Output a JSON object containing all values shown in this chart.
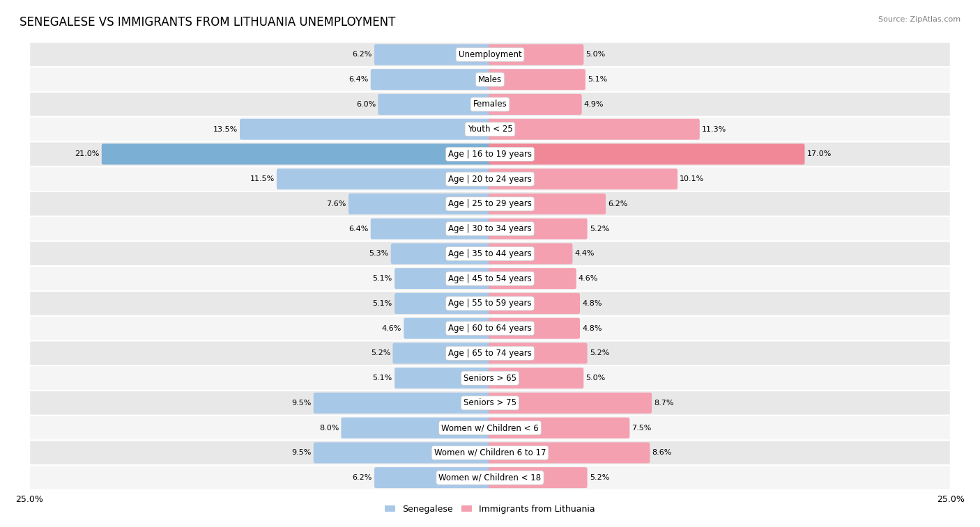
{
  "title": "SENEGALESE VS IMMIGRANTS FROM LITHUANIA UNEMPLOYMENT",
  "source": "Source: ZipAtlas.com",
  "categories": [
    "Unemployment",
    "Males",
    "Females",
    "Youth < 25",
    "Age | 16 to 19 years",
    "Age | 20 to 24 years",
    "Age | 25 to 29 years",
    "Age | 30 to 34 years",
    "Age | 35 to 44 years",
    "Age | 45 to 54 years",
    "Age | 55 to 59 years",
    "Age | 60 to 64 years",
    "Age | 65 to 74 years",
    "Seniors > 65",
    "Seniors > 75",
    "Women w/ Children < 6",
    "Women w/ Children 6 to 17",
    "Women w/ Children < 18"
  ],
  "senegalese": [
    6.2,
    6.4,
    6.0,
    13.5,
    21.0,
    11.5,
    7.6,
    6.4,
    5.3,
    5.1,
    5.1,
    4.6,
    5.2,
    5.1,
    9.5,
    8.0,
    9.5,
    6.2
  ],
  "lithuania": [
    5.0,
    5.1,
    4.9,
    11.3,
    17.0,
    10.1,
    6.2,
    5.2,
    4.4,
    4.6,
    4.8,
    4.8,
    5.2,
    5.0,
    8.7,
    7.5,
    8.6,
    5.2
  ],
  "senegalese_color_normal": "#a8c8e8",
  "senegalese_color_highlight": "#7bafd4",
  "lithuania_color_normal": "#f4a0b0",
  "lithuania_color_highlight": "#f08898",
  "row_bg_light": "#e8e8e8",
  "row_bg_dark": "#f5f5f5",
  "bar_height": 0.68,
  "xlim": 25.0,
  "legend_label_left": "Senegalese",
  "legend_label_right": "Immigrants from Lithuania",
  "title_fontsize": 12,
  "label_fontsize": 8.5,
  "value_fontsize": 8.0,
  "highlight_row": "Age | 16 to 19 years"
}
